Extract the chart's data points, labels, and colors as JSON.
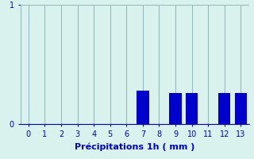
{
  "hours": [
    0,
    1,
    2,
    3,
    4,
    5,
    6,
    7,
    8,
    9,
    10,
    11,
    12,
    13
  ],
  "values": [
    0,
    0,
    0,
    0,
    0,
    0,
    0,
    0.28,
    0,
    0.26,
    0.26,
    0,
    0.26,
    0.26
  ],
  "bar_color": "#0000cc",
  "background_color": "#daf2ee",
  "grid_color": "#99bbbb",
  "text_color": "#0000cc",
  "xlabel": "Précipitations 1h ( mm )",
  "ylim": [
    0,
    1
  ],
  "yticks": [
    0,
    1
  ],
  "xlim": [
    -0.5,
    13.5
  ],
  "bar_width": 0.75,
  "xlabel_fontsize": 8,
  "tick_fontsize": 7
}
